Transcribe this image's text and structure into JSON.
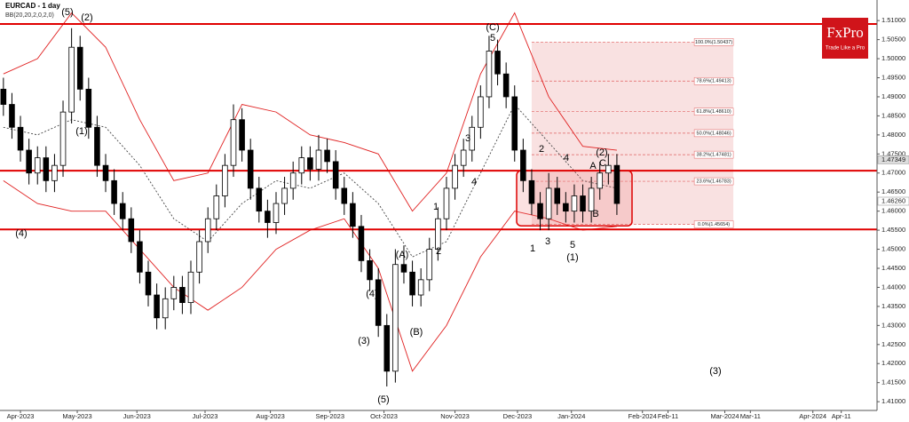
{
  "chart_data": {
    "type": "candlestick",
    "title": "EURCAD - 1 day",
    "subtitle": "BB(20,20,2,0,2,0)",
    "x": [
      -6,
      -3,
      0,
      3,
      6,
      9,
      12,
      15,
      18,
      21,
      24,
      27,
      30,
      33,
      36,
      39,
      42,
      45,
      48,
      51,
      54,
      57,
      60,
      63,
      66,
      69,
      72,
      75,
      78,
      81,
      84,
      87,
      90,
      93,
      96,
      99,
      102,
      105,
      108,
      111,
      114,
      117,
      120,
      123,
      126,
      129,
      132,
      135,
      138,
      141,
      144,
      147,
      150,
      153,
      156,
      159,
      162,
      165,
      168,
      171,
      174,
      177,
      180,
      183,
      186,
      189,
      192,
      195,
      198,
      201,
      204,
      207,
      210
    ],
    "ohlc": [
      [
        1.492,
        1.495,
        1.485,
        1.488
      ],
      [
        1.488,
        1.491,
        1.479,
        1.482
      ],
      [
        1.482,
        1.485,
        1.473,
        1.476
      ],
      [
        1.476,
        1.479,
        1.467,
        1.47
      ],
      [
        1.47,
        1.477,
        1.467,
        1.474
      ],
      [
        1.474,
        1.477,
        1.465,
        1.468
      ],
      [
        1.468,
        1.475,
        1.465,
        1.472
      ],
      [
        1.472,
        1.489,
        1.469,
        1.486
      ],
      [
        1.486,
        1.508,
        1.483,
        1.503
      ],
      [
        1.503,
        1.506,
        1.489,
        1.492
      ],
      [
        1.492,
        1.495,
        1.479,
        1.482
      ],
      [
        1.482,
        1.485,
        1.469,
        1.472
      ],
      [
        1.472,
        1.475,
        1.465,
        1.468
      ],
      [
        1.468,
        1.471,
        1.459,
        1.462
      ],
      [
        1.462,
        1.465,
        1.455,
        1.458
      ],
      [
        1.458,
        1.461,
        1.449,
        1.452
      ],
      [
        1.452,
        1.455,
        1.441,
        1.444
      ],
      [
        1.444,
        1.447,
        1.435,
        1.438
      ],
      [
        1.438,
        1.441,
        1.429,
        1.432
      ],
      [
        1.432,
        1.44,
        1.429,
        1.437
      ],
      [
        1.437,
        1.443,
        1.434,
        1.44
      ],
      [
        1.44,
        1.443,
        1.433,
        1.436
      ],
      [
        1.436,
        1.447,
        1.433,
        1.444
      ],
      [
        1.444,
        1.455,
        1.441,
        1.452
      ],
      [
        1.452,
        1.461,
        1.449,
        1.458
      ],
      [
        1.458,
        1.467,
        1.455,
        1.464
      ],
      [
        1.464,
        1.475,
        1.461,
        1.472
      ],
      [
        1.472,
        1.488,
        1.469,
        1.484
      ],
      [
        1.484,
        1.487,
        1.473,
        1.476
      ],
      [
        1.476,
        1.479,
        1.463,
        1.466
      ],
      [
        1.466,
        1.469,
        1.457,
        1.46
      ],
      [
        1.46,
        1.463,
        1.453,
        1.457
      ],
      [
        1.457,
        1.465,
        1.454,
        1.462
      ],
      [
        1.462,
        1.469,
        1.459,
        1.466
      ],
      [
        1.466,
        1.473,
        1.463,
        1.47
      ],
      [
        1.47,
        1.477,
        1.467,
        1.474
      ],
      [
        1.474,
        1.477,
        1.468,
        1.471
      ],
      [
        1.471,
        1.48,
        1.468,
        1.476
      ],
      [
        1.476,
        1.479,
        1.47,
        1.473
      ],
      [
        1.473,
        1.476,
        1.463,
        1.466
      ],
      [
        1.466,
        1.469,
        1.459,
        1.462
      ],
      [
        1.462,
        1.465,
        1.453,
        1.456
      ],
      [
        1.456,
        1.459,
        1.444,
        1.447
      ],
      [
        1.447,
        1.45,
        1.439,
        1.442
      ],
      [
        1.442,
        1.445,
        1.427,
        1.43
      ],
      [
        1.43,
        1.433,
        1.414,
        1.418
      ],
      [
        1.418,
        1.45,
        1.415,
        1.446
      ],
      [
        1.446,
        1.451,
        1.441,
        1.444
      ],
      [
        1.444,
        1.447,
        1.435,
        1.438
      ],
      [
        1.438,
        1.445,
        1.435,
        1.442
      ],
      [
        1.442,
        1.453,
        1.439,
        1.45
      ],
      [
        1.45,
        1.461,
        1.447,
        1.458
      ],
      [
        1.458,
        1.469,
        1.455,
        1.466
      ],
      [
        1.466,
        1.475,
        1.463,
        1.472
      ],
      [
        1.472,
        1.479,
        1.469,
        1.476
      ],
      [
        1.476,
        1.485,
        1.473,
        1.482
      ],
      [
        1.482,
        1.493,
        1.479,
        1.49
      ],
      [
        1.49,
        1.506,
        1.487,
        1.502
      ],
      [
        1.502,
        1.505,
        1.493,
        1.496
      ],
      [
        1.496,
        1.499,
        1.487,
        1.49
      ],
      [
        1.49,
        1.493,
        1.473,
        1.476
      ],
      [
        1.476,
        1.479,
        1.465,
        1.468
      ],
      [
        1.468,
        1.471,
        1.459,
        1.462
      ],
      [
        1.462,
        1.465,
        1.455,
        1.458
      ],
      [
        1.458,
        1.47,
        1.455,
        1.466
      ],
      [
        1.466,
        1.469,
        1.459,
        1.462
      ],
      [
        1.462,
        1.465,
        1.457,
        1.46
      ],
      [
        1.46,
        1.467,
        1.457,
        1.464
      ],
      [
        1.464,
        1.467,
        1.457,
        1.46
      ],
      [
        1.46,
        1.469,
        1.457,
        1.466
      ],
      [
        1.466,
        1.473,
        1.463,
        1.47
      ],
      [
        1.47,
        1.475,
        1.467,
        1.472
      ],
      [
        1.472,
        1.475,
        1.459,
        1.462
      ]
    ],
    "bands": {
      "x": [
        -6,
        6,
        18,
        30,
        42,
        54,
        66,
        78,
        90,
        102,
        114,
        126,
        138,
        150,
        162,
        174,
        186,
        198,
        210
      ],
      "upper": [
        1.496,
        1.5,
        1.512,
        1.503,
        1.484,
        1.468,
        1.47,
        1.488,
        1.486,
        1.48,
        1.478,
        1.475,
        1.46,
        1.47,
        1.496,
        1.512,
        1.49,
        1.477,
        1.476
      ],
      "middle": [
        1.482,
        1.48,
        1.484,
        1.482,
        1.472,
        1.458,
        1.452,
        1.462,
        1.468,
        1.466,
        1.47,
        1.462,
        1.448,
        1.452,
        1.47,
        1.488,
        1.478,
        1.468,
        1.466
      ],
      "lower": [
        1.468,
        1.462,
        1.46,
        1.46,
        1.45,
        1.44,
        1.434,
        1.44,
        1.45,
        1.455,
        1.458,
        1.445,
        1.418,
        1.43,
        1.448,
        1.46,
        1.458,
        1.455,
        1.456
      ],
      "color": "#e02020"
    },
    "levels": [
      1.5091,
      1.4706,
      1.4552
    ],
    "level_color": "#e00000",
    "fib_x": [
      180,
      251
    ],
    "fibonacci": [
      {
        "value": 1.50437,
        "label": "100.0%(1.50437)"
      },
      {
        "value": 1.49413,
        "label": "78.6%(1.49413)"
      },
      {
        "value": 1.4861,
        "label": "61.8%(1.48610)"
      },
      {
        "value": 1.48046,
        "label": "50.0%(1.48046)"
      },
      {
        "value": 1.47481,
        "label": "38.2%(1.47481)"
      },
      {
        "value": 1.46783,
        "label": "23.6%(1.46783)"
      },
      {
        "value": 1.45654,
        "label": "0.0%(1.45654)"
      }
    ],
    "price_tags": [
      {
        "value": 1.47349,
        "label": "1.47349"
      },
      {
        "value": 1.4626,
        "label": "1.46260"
      }
    ],
    "xlim": [
      -7.2,
      301.6
    ],
    "ylim": [
      1.4077,
      1.5154
    ],
    "xticks": [
      {
        "value": 0,
        "label": "Apr-2023"
      },
      {
        "value": 20,
        "label": "May-2023"
      },
      {
        "value": 41,
        "label": "Jun-2023"
      },
      {
        "value": 65,
        "label": "Jul-2023"
      },
      {
        "value": 88,
        "label": "Aug-2023"
      },
      {
        "value": 109,
        "label": "Sep-2023"
      },
      {
        "value": 128,
        "label": "Oct-2023"
      },
      {
        "value": 153,
        "label": "Nov-2023"
      },
      {
        "value": 175,
        "label": "Dec-2023"
      },
      {
        "value": 194,
        "label": "Jan-2024"
      },
      {
        "value": 219,
        "label": "Feb-2024"
      },
      {
        "value": 228,
        "label": "Feb-11"
      },
      {
        "value": 248,
        "label": "Mar-2024"
      },
      {
        "value": 257,
        "label": "Mar-11"
      },
      {
        "value": 279,
        "label": "Apr-2024"
      },
      {
        "value": 289,
        "label": "Apr-11"
      }
    ],
    "yticks": [
      {
        "value": 1.51,
        "label": "1.51000"
      },
      {
        "value": 1.505,
        "label": "1.50500"
      },
      {
        "value": 1.5,
        "label": "1.50000"
      },
      {
        "value": 1.495,
        "label": "1.49500"
      },
      {
        "value": 1.49,
        "label": "1.49000"
      },
      {
        "value": 1.485,
        "label": "1.48500"
      },
      {
        "value": 1.48,
        "label": "1.48000"
      },
      {
        "value": 1.475,
        "label": "1.47500"
      },
      {
        "value": 1.47,
        "label": "1.47000"
      },
      {
        "value": 1.465,
        "label": "1.46500"
      },
      {
        "value": 1.46,
        "label": "1.46000"
      },
      {
        "value": 1.455,
        "label": "1.45500"
      },
      {
        "value": 1.45,
        "label": "1.45000"
      },
      {
        "value": 1.445,
        "label": "1.44500"
      },
      {
        "value": 1.44,
        "label": "1.44000"
      },
      {
        "value": 1.435,
        "label": "1.43500"
      },
      {
        "value": 1.43,
        "label": "1.43000"
      },
      {
        "value": 1.425,
        "label": "1.42500"
      },
      {
        "value": 1.42,
        "label": "1.42000"
      },
      {
        "value": 1.415,
        "label": "1.41500"
      },
      {
        "value": 1.41,
        "label": "1.41000"
      }
    ],
    "annotations": [
      "(5)",
      "(2)",
      "(1)",
      "(4)",
      "(C)",
      "5",
      "3",
      "4",
      "1",
      "2",
      "(A)",
      "(B)",
      "(4)",
      "(3)",
      "(5)",
      "2",
      "1",
      "3",
      "5",
      "(1)",
      "4",
      "(2)",
      "A",
      "C",
      "B",
      "(3)"
    ],
    "logo": {
      "name": "FxPro",
      "tagline": "Trade Like a Pro"
    }
  }
}
